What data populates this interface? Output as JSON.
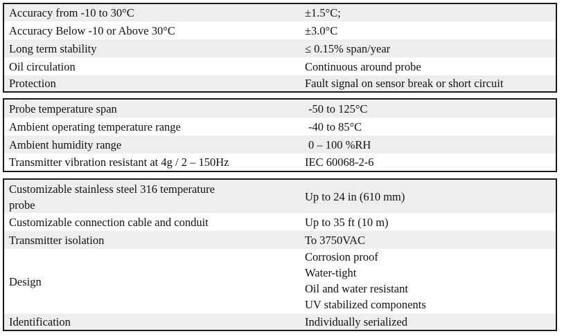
{
  "table1": [
    {
      "label": "Accuracy from -10 to 30°C",
      "value": "±1.5°C;"
    },
    {
      "label": "Accuracy Below -10 or Above 30°C",
      "value": "±3.0°C"
    },
    {
      "label": "Long term stability",
      "value": "≤ 0.15% span/year"
    },
    {
      "label": "Oil circulation",
      "value": "Continuous around probe"
    },
    {
      "label": "Protection",
      "value": "Fault signal on sensor break or short circuit"
    }
  ],
  "table2": [
    {
      "label": "Probe temperature span",
      "value": "-50 to 125°C"
    },
    {
      "label": "Ambient operating temperature range",
      "value": "-40 to 85°C"
    },
    {
      "label": "Ambient humidity range",
      "value": "0 – 100 %RH"
    },
    {
      "label": "Transmitter vibration resistant at 4g / 2 – 150Hz",
      "value": "IEC 60068-2-6"
    }
  ],
  "table3": {
    "probe": {
      "label_line1": "Customizable stainless steel 316 temperature",
      "label_line2": "probe",
      "value": "Up to 24 in (610 mm)"
    },
    "cable": {
      "label": "Customizable connection cable and conduit",
      "value": "Up to 35 ft (10 m)"
    },
    "isolation": {
      "label": "Transmitter isolation",
      "value": "To 3750VAC"
    },
    "design": {
      "label": "Design",
      "values": [
        "Corrosion proof",
        "Water-tight",
        "Oil and water resistant",
        "UV stabilized components"
      ]
    },
    "identification": {
      "label": "Identification",
      "value": "Individually serialized"
    }
  }
}
